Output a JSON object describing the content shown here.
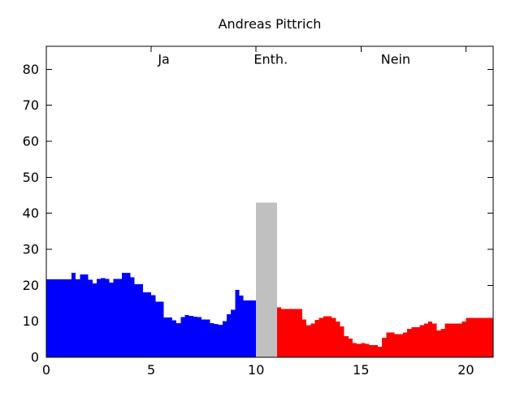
{
  "colors": {
    "background": "#ffffff",
    "axis": "#000000",
    "text": "#000000",
    "series_yes": "#0000ff",
    "series_abstain": "#c0c0c0",
    "series_no": "#ff0000"
  },
  "chart_data": {
    "type": "area",
    "title": "Andreas Pittrich",
    "xlabel": "",
    "ylabel": "",
    "xlim": [
      0,
      21.3
    ],
    "ylim": [
      0,
      86.4
    ],
    "grid": false,
    "legend": "none",
    "x_tick_values": [
      0,
      5,
      10,
      15,
      20
    ],
    "x_tick_labels": [
      "0",
      "5",
      "10",
      "15",
      "20"
    ],
    "y_tick_values": [
      0,
      10,
      20,
      30,
      40,
      50,
      60,
      70,
      80
    ],
    "y_tick_labels": [
      "0",
      "10",
      "20",
      "30",
      "40",
      "50",
      "60",
      "70",
      "80"
    ],
    "annotations": [
      {
        "label": "Ja",
        "x": 5.6,
        "y": 81.5
      },
      {
        "label": "Enth.",
        "x": 10.7,
        "y": 81.5
      },
      {
        "label": "Nein",
        "x": 16.65,
        "y": 81.5
      }
    ],
    "series": [
      {
        "name": "Ja",
        "color": "#0000ff",
        "x_start": 0.0,
        "step": 0.2,
        "values": [
          21.7,
          21.7,
          21.7,
          21.7,
          21.7,
          21.7,
          23.5,
          21.7,
          23.0,
          23.0,
          21.5,
          20.5,
          21.8,
          22.0,
          21.8,
          20.7,
          21.8,
          21.8,
          23.5,
          23.5,
          22.2,
          20.3,
          20.3,
          18.0,
          18.0,
          17.3,
          15.5,
          15.5,
          11.0,
          11.0,
          10.3,
          9.5,
          11.2,
          11.7,
          11.5,
          11.3,
          11.2,
          10.5,
          10.5,
          9.5,
          9.3,
          9.0,
          10.0,
          12.0,
          13.2,
          18.7,
          17.2,
          15.8,
          15.8,
          15.8
        ]
      },
      {
        "name": "Enth.",
        "color": "#c0c0c0",
        "x_start": 10.0,
        "step": 0.2,
        "values": [
          43,
          43,
          43,
          43,
          43
        ]
      },
      {
        "name": "Nein",
        "color": "#ff0000",
        "x_start": 11.0,
        "step": 0.2,
        "values": [
          13.9,
          13.4,
          13.4,
          13.4,
          13.4,
          13.4,
          10.5,
          8.9,
          9.4,
          10.4,
          10.9,
          11.4,
          11.4,
          10.9,
          9.9,
          8.6,
          5.9,
          5.2,
          3.9,
          3.7,
          3.9,
          3.7,
          3.4,
          3.4,
          2.9,
          5.4,
          6.9,
          6.9,
          6.4,
          6.4,
          6.9,
          7.9,
          8.4,
          8.4,
          8.9,
          9.4,
          9.9,
          9.4,
          7.4,
          7.9,
          9.4,
          9.4,
          9.4,
          9.4,
          9.9,
          10.9,
          10.9,
          10.9,
          10.9,
          10.9,
          10.9,
          10.9
        ]
      }
    ]
  }
}
